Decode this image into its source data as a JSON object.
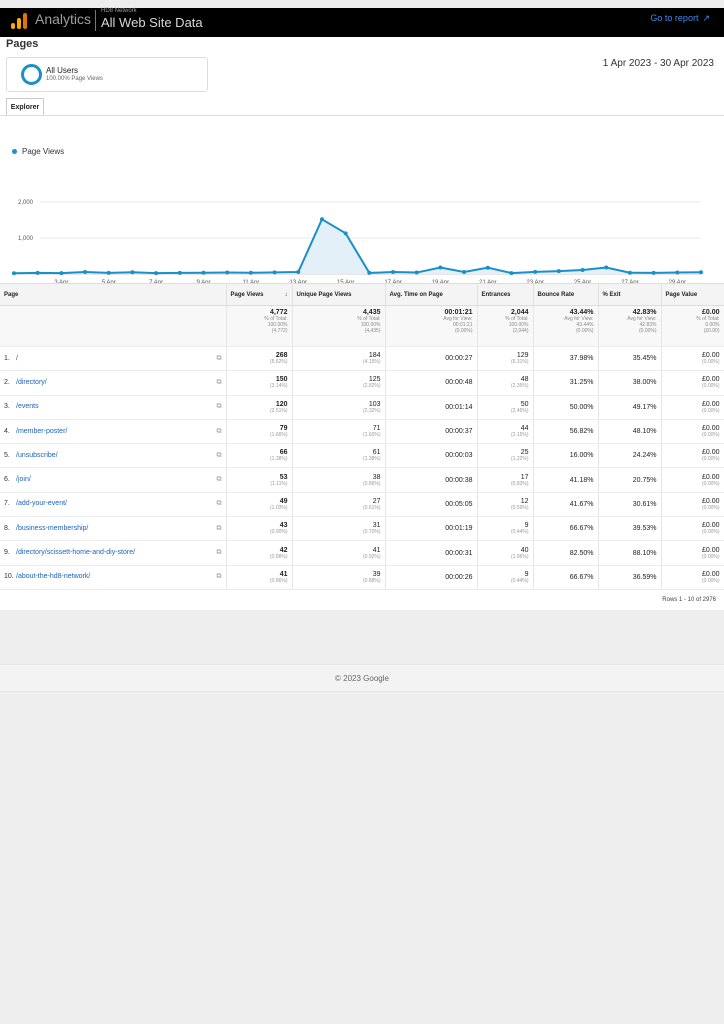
{
  "header": {
    "brand": "Analytics",
    "network": "HD8 Network",
    "property": "All Web Site Data",
    "go_to_report": "Go to report",
    "accent": "#f9ab00"
  },
  "page": {
    "title": "Pages",
    "date_range": "1 Apr 2023 - 30 Apr 2023",
    "segment": {
      "name": "All Users",
      "sub": "100.00% Page Views"
    },
    "tab": "Explorer"
  },
  "chart_data": {
    "type": "line",
    "legend": "Page Views",
    "series_color": "#1a8fc8",
    "ylim": [
      0,
      2000
    ],
    "yticks": [
      "2,000",
      "1,000"
    ],
    "x_tick_labels": [
      "...",
      "3 Apr",
      "5 Apr",
      "7 Apr",
      "9 Apr",
      "11 Apr",
      "13 Apr",
      "15 Apr",
      "17 Apr",
      "19 Apr",
      "21 Apr",
      "23 Apr",
      "25 Apr",
      "27 Apr",
      "29 Apr"
    ],
    "values": [
      20,
      30,
      25,
      55,
      30,
      50,
      25,
      30,
      35,
      40,
      35,
      45,
      55,
      1520,
      1130,
      30,
      55,
      40,
      180,
      55,
      175,
      25,
      60,
      80,
      110,
      180,
      35,
      30,
      40,
      50
    ]
  },
  "table": {
    "headers": [
      "Page",
      "Page Views",
      "Unique Page Views",
      "Avg. Time on Page",
      "Entrances",
      "Bounce Rate",
      "% Exit",
      "Page Value"
    ],
    "totals": [
      {
        "main": "4,772",
        "l1": "% of Total:",
        "l2": "100.00%",
        "l3": "(4,772)"
      },
      {
        "main": "4,435",
        "l1": "% of Total:",
        "l2": "100.00%",
        "l3": "(4,435)"
      },
      {
        "main": "00:01:21",
        "l1": "Avg for View:",
        "l2": "00:01:21",
        "l3": "(0.00%)"
      },
      {
        "main": "2,044",
        "l1": "% of Total:",
        "l2": "100.00%",
        "l3": "(2,044)"
      },
      {
        "main": "43.44%",
        "l1": "Avg for View:",
        "l2": "43.44%",
        "l3": "(0.00%)"
      },
      {
        "main": "42.83%",
        "l1": "Avg for View:",
        "l2": "42.83%",
        "l3": "(0.00%)"
      },
      {
        "main": "£0.00",
        "l1": "% of Total:",
        "l2": "0.00%",
        "l3": "(£0.00)"
      }
    ],
    "rows": [
      {
        "idx": "1.",
        "page": "/",
        "pv": "268",
        "pv_pct": "(5.62%)",
        "upv": "184",
        "upv_pct": "(4.15%)",
        "time": "00:00:27",
        "ent": "129",
        "ent_pct": "(6.31%)",
        "bounce": "37.98%",
        "exit": "35.45%",
        "value": "£0.00",
        "value_pct": "(0.00%)"
      },
      {
        "idx": "2.",
        "page": "/directory/",
        "pv": "150",
        "pv_pct": "(3.14%)",
        "upv": "125",
        "upv_pct": "(2.82%)",
        "time": "00:00:48",
        "ent": "48",
        "ent_pct": "(2.35%)",
        "bounce": "31.25%",
        "exit": "38.00%",
        "value": "£0.00",
        "value_pct": "(0.00%)"
      },
      {
        "idx": "3.",
        "page": "/events",
        "pv": "120",
        "pv_pct": "(2.51%)",
        "upv": "103",
        "upv_pct": "(2.32%)",
        "time": "00:01:14",
        "ent": "50",
        "ent_pct": "(2.45%)",
        "bounce": "50.00%",
        "exit": "49.17%",
        "value": "£0.00",
        "value_pct": "(0.00%)"
      },
      {
        "idx": "4.",
        "page": "/member-poster/",
        "pv": "79",
        "pv_pct": "(1.66%)",
        "upv": "71",
        "upv_pct": "(1.60%)",
        "time": "00:00:37",
        "ent": "44",
        "ent_pct": "(2.15%)",
        "bounce": "56.82%",
        "exit": "48.10%",
        "value": "£0.00",
        "value_pct": "(0.00%)"
      },
      {
        "idx": "5.",
        "page": "/unsubscribe/",
        "pv": "66",
        "pv_pct": "(1.38%)",
        "upv": "61",
        "upv_pct": "(1.38%)",
        "time": "00:00:03",
        "ent": "25",
        "ent_pct": "(1.22%)",
        "bounce": "16.00%",
        "exit": "24.24%",
        "value": "£0.00",
        "value_pct": "(0.00%)"
      },
      {
        "idx": "6.",
        "page": "/join/",
        "pv": "53",
        "pv_pct": "(1.11%)",
        "upv": "38",
        "upv_pct": "(0.86%)",
        "time": "00:00:38",
        "ent": "17",
        "ent_pct": "(0.83%)",
        "bounce": "41.18%",
        "exit": "20.75%",
        "value": "£0.00",
        "value_pct": "(0.00%)"
      },
      {
        "idx": "7.",
        "page": "/add-your-event/",
        "pv": "49",
        "pv_pct": "(1.03%)",
        "upv": "27",
        "upv_pct": "(0.61%)",
        "time": "00:05:05",
        "ent": "12",
        "ent_pct": "(0.59%)",
        "bounce": "41.67%",
        "exit": "30.61%",
        "value": "£0.00",
        "value_pct": "(0.00%)"
      },
      {
        "idx": "8.",
        "page": "/business-membership/",
        "pv": "43",
        "pv_pct": "(0.90%)",
        "upv": "31",
        "upv_pct": "(0.70%)",
        "time": "00:01:19",
        "ent": "9",
        "ent_pct": "(0.44%)",
        "bounce": "66.67%",
        "exit": "39.53%",
        "value": "£0.00",
        "value_pct": "(0.00%)"
      },
      {
        "idx": "9.",
        "page": "/directory/scissett-home-and-diy-store/",
        "pv": "42",
        "pv_pct": "(0.88%)",
        "upv": "41",
        "upv_pct": "(0.92%)",
        "time": "00:00:31",
        "ent": "40",
        "ent_pct": "(1.96%)",
        "bounce": "82.50%",
        "exit": "88.10%",
        "value": "£0.00",
        "value_pct": "(0.00%)"
      },
      {
        "idx": "10.",
        "page": "/about-the-hd8-network/",
        "pv": "41",
        "pv_pct": "(0.86%)",
        "upv": "39",
        "upv_pct": "(0.88%)",
        "time": "00:00:26",
        "ent": "9",
        "ent_pct": "(0.44%)",
        "bounce": "66.67%",
        "exit": "36.59%",
        "value": "£0.00",
        "value_pct": "(0.00%)"
      }
    ],
    "rows_info": "Rows 1 - 10 of 2976"
  },
  "footer": {
    "copyright": "© 2023 Google"
  }
}
